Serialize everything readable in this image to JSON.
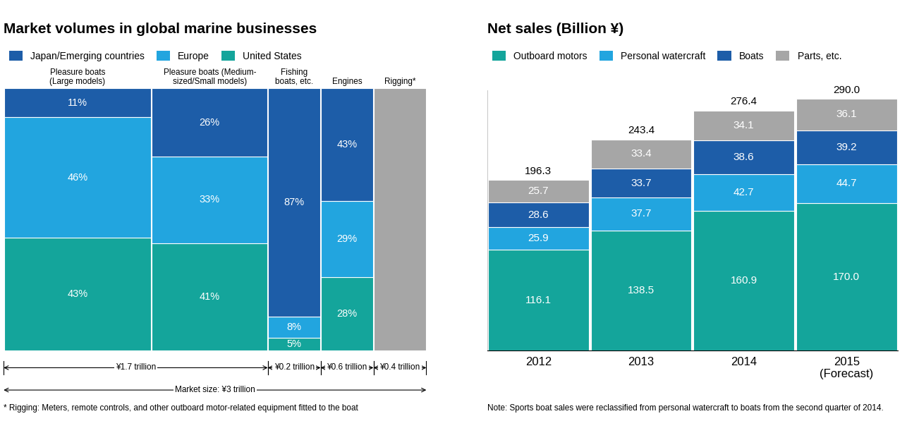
{
  "chart_data": [
    {
      "type": "marimekko",
      "title": "Market volumes in global marine businesses",
      "categories": [
        "Pleasure boats\n(Large models)",
        "Pleasure boats (Medium-\nsized/Small models)",
        "Fishing\nboats, etc.",
        "Engines",
        "Rigging*"
      ],
      "series": [
        {
          "name": "Japan/Emerging countries",
          "color": "#1d5da8",
          "values": [
            11,
            26,
            87,
            43,
            null
          ],
          "value_labels": [
            "11%",
            "26%",
            "87%",
            "43%",
            null
          ]
        },
        {
          "name": "Europe",
          "color": "#22a5df",
          "values": [
            46,
            33,
            8,
            29,
            null
          ],
          "value_labels": [
            "46%",
            "33%",
            "8%",
            "29%",
            null
          ]
        },
        {
          "name": "United States",
          "color": "#14a59b",
          "values": [
            43,
            41,
            5,
            28,
            null
          ],
          "value_labels": [
            "43%",
            "41%",
            "5%",
            "28%",
            null
          ]
        }
      ],
      "unsplit": {
        "color": "#a6a6a6",
        "values": [
          null,
          null,
          null,
          null,
          100
        ]
      },
      "groups": [
        {
          "label": "¥1.7 trillion",
          "from": 0,
          "to": 1
        },
        {
          "label": "¥0.2 trillion",
          "from": 2,
          "to": 2
        },
        {
          "label": "¥0.6 trillion",
          "from": 3,
          "to": 3
        },
        {
          "label": "¥0.4 trillion",
          "from": 4,
          "to": 4
        }
      ],
      "total_label": "Market size: ¥3 trillion",
      "footnote": "* Rigging: Meters, remote controls, and other outboard motor-related equipment fitted to the boat",
      "stacked": true,
      "data_labels": true,
      "tick_labels": false,
      "legend": "upper left",
      "ylim": [
        0,
        100
      ]
    },
    {
      "type": "bar",
      "title": "Net sales (Billion ¥)",
      "categories": [
        "2012",
        "2013",
        "2014",
        "2015\n(Forecast)"
      ],
      "series": [
        {
          "name": "Outboard motors",
          "color": "#14a59b",
          "values": [
            116.1,
            138.5,
            160.9,
            170.0
          ],
          "value_labels": [
            "116.1",
            "138.5",
            "160.9",
            "170.0"
          ]
        },
        {
          "name": "Personal watercraft",
          "color": "#22a5df",
          "values": [
            25.9,
            37.7,
            42.7,
            44.7
          ]
        },
        {
          "name": "Boats",
          "color": "#1d5da8",
          "values": [
            28.6,
            33.7,
            38.6,
            39.2
          ]
        },
        {
          "name": "Parts, etc.",
          "color": "#a6a6a6",
          "values": [
            25.7,
            33.4,
            34.1,
            36.1
          ]
        }
      ],
      "totals": {
        "values": [
          196.3,
          243.4,
          276.4,
          290.0
        ],
        "value_labels": [
          "196.3",
          "243.4",
          "276.4",
          "290.0"
        ]
      },
      "note": "Note: Sports boat sales were reclassified from personal watercraft to boats from the second quarter of 2014.",
      "stacked": true,
      "data_labels": true,
      "tick_labels": "x",
      "legend": "upper left",
      "ylim": [
        0,
        300
      ],
      "yticks": []
    }
  ]
}
